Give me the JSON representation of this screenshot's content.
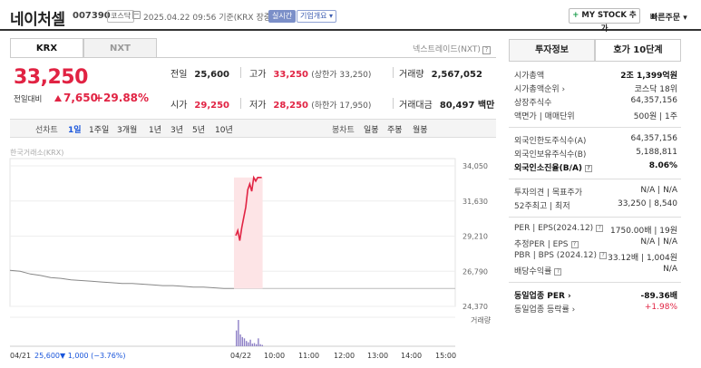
{
  "header": {
    "name": "네이처셀",
    "code": "007390",
    "market_badge": "코스닥",
    "timestamp": "2025.04.22 09:56  기준(KRX 장중)",
    "live_badge": "실시간",
    "company_badge": "기업개요 ▾",
    "my_stock_plus": "+",
    "my_stock": "MY STOCK 추가",
    "quick_order": "빠른주문 ▾"
  },
  "market_tabs": {
    "krx": "KRX",
    "nxt": "NXT"
  },
  "nxt_subtitle": "넥스트레이드(NXT)",
  "price": {
    "current": "33,250",
    "change_label": "전일대비",
    "change": "7,650",
    "change_pct": "+29.88%"
  },
  "quotes": {
    "prev_label": "전일",
    "prev": "25,600",
    "high_label": "고가",
    "high": "33,250",
    "high_sub": "(상한가 33,250)",
    "volume_label": "거래량",
    "volume": "2,567,052",
    "open_label": "시가",
    "open": "29,250",
    "low_label": "저가",
    "low": "28,250",
    "low_sub": "(하한가 17,950)",
    "amount_label": "거래대금",
    "amount": "80,497 백만"
  },
  "period_bar": {
    "chart_label": "선차트",
    "periods": [
      "1일",
      "1주일",
      "3개월",
      "1년",
      "3년",
      "5년",
      "10년"
    ],
    "active_period": "1일",
    "candle_label": "봉차트",
    "candles": [
      "일봉",
      "주봉",
      "월봉"
    ]
  },
  "chart_source": "한국거래소(KRX)",
  "chart_data": {
    "type": "line",
    "yticks": [
      "34,050",
      "31,630",
      "29,210",
      "26,790",
      "24,370"
    ],
    "ylim": [
      24370,
      34050
    ],
    "xticks": [
      "04/22",
      "10:00",
      "11:00",
      "12:00",
      "13:00",
      "14:00",
      "15:00"
    ],
    "prev_close": 25600,
    "limit_up": 33250,
    "prev_day_series": [
      26850,
      26790,
      26600,
      26500,
      26350,
      26300,
      26200,
      26150,
      26100,
      26050,
      26000,
      25950,
      25950,
      25900,
      25850,
      25800,
      25800,
      25750,
      25700,
      25700,
      25650,
      25600,
      25600
    ],
    "today_series": [
      29250,
      29600,
      28900,
      29800,
      30500,
      31200,
      32400,
      32800,
      32300,
      33250,
      33000,
      33250,
      33250,
      33250
    ],
    "volume_today": [
      0.6,
      1.0,
      0.45,
      0.35,
      0.3,
      0.2,
      0.15,
      0.25,
      0.1,
      0.12,
      0.08,
      0.3,
      0.08,
      0.05
    ],
    "volume_label": "거래량",
    "footer_date": "04/21",
    "footer_price": "25,600",
    "footer_change": "▼ 1,000 (−3.76%)"
  },
  "colors": {
    "up": "#e12343",
    "down": "#1a56db",
    "accent_blue": "#3b5bb0"
  },
  "right_panel": {
    "tab_invest": "투자정보",
    "tab_orderbook": "호가 10단계",
    "rows": [
      {
        "k": "시가총액",
        "v": "2조 1,399억원",
        "bold_v": true
      },
      {
        "k": "시가총액순위 ›",
        "v": "코스닥 18위"
      },
      {
        "k": "상장주식수",
        "v": "64,357,156"
      },
      {
        "k": "액면가 | 매매단위",
        "v": "500원 | 1주"
      },
      {
        "k": "외국인한도주식수(A)",
        "v": "64,357,156"
      },
      {
        "k": "외국인보유주식수(B)",
        "v": "5,188,811"
      },
      {
        "k": "외국인소진율(B/A)",
        "v": "8.06%",
        "bold_v": true,
        "bold_k": true,
        "q": true
      },
      {
        "k": "투자의견 | 목표주가",
        "v": "N/A | N/A"
      },
      {
        "k": "52주최고 | 최저",
        "v": "33,250 | 8,540"
      },
      {
        "k": "PER | EPS(2024.12)",
        "v": "1750.00배 | 19원",
        "q": true
      },
      {
        "k": "추정PER | EPS",
        "v": "N/A | N/A",
        "q": true
      },
      {
        "k": "PBR | BPS (2024.12)",
        "v": "33.12배 | 1,004원",
        "q": true
      },
      {
        "k": "배당수익률",
        "v": "N/A",
        "q": true
      },
      {
        "k": "동일업종 PER ›",
        "v": "-89.36배",
        "bold_v": true,
        "bold_k": true
      },
      {
        "k": "동일업종 등락률 ›",
        "v": "+1.98%",
        "red": true
      }
    ]
  }
}
